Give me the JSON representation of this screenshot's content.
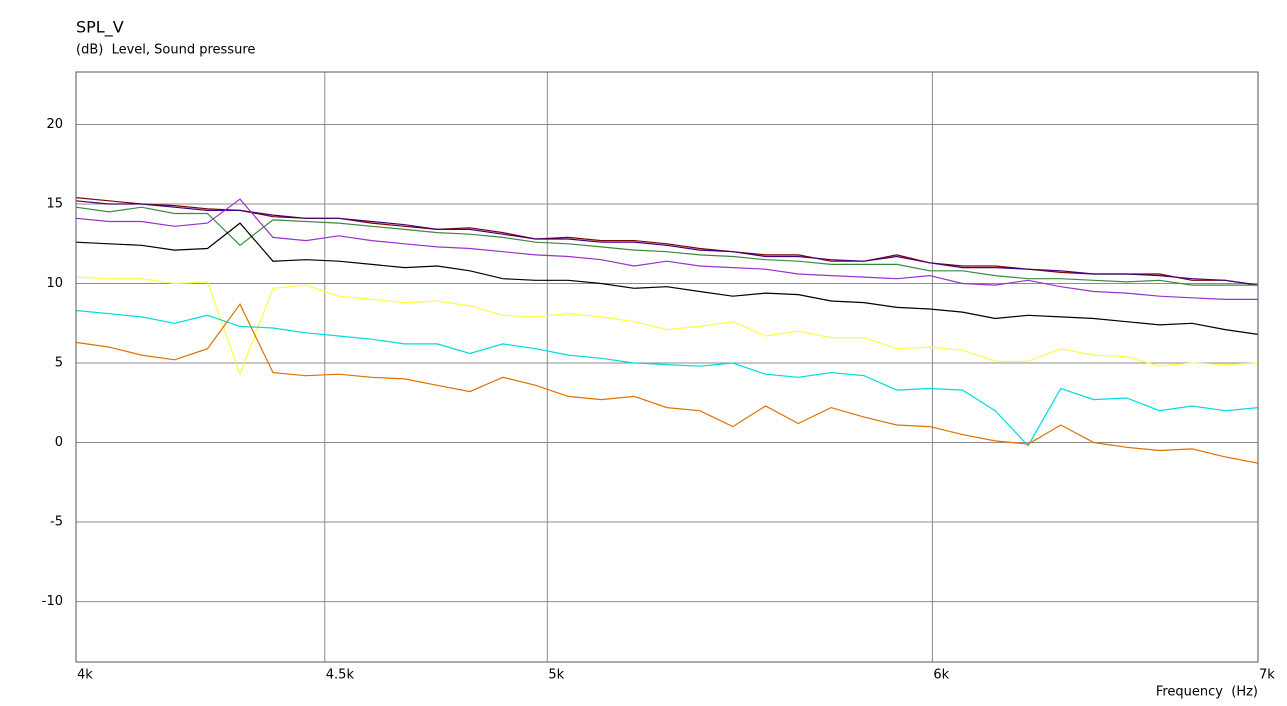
{
  "chart_data": {
    "type": "line",
    "title": "SPL_V",
    "subtitle": "(dB)  Level, Sound pressure",
    "x_label": "Frequency  (Hz)",
    "xscale": "log",
    "grid": true,
    "xlim": [
      4000,
      7000
    ],
    "xticks": [
      {
        "value": 4000,
        "label": "4k"
      },
      {
        "value": 4500,
        "label": "4.5k"
      },
      {
        "value": 5000,
        "label": "5k"
      },
      {
        "value": 6000,
        "label": "6k"
      },
      {
        "value": 7000,
        "label": "7k"
      }
    ],
    "ylim": [
      -13.8,
      23.3
    ],
    "yticks": [
      -10,
      -5,
      0,
      5,
      10,
      15,
      20
    ],
    "x": [
      4000,
      4063,
      4126,
      4191,
      4257,
      4323,
      4391,
      4460,
      4530,
      4601,
      4673,
      4746,
      4820,
      4896,
      4972,
      5050,
      5129,
      5210,
      5291,
      5374,
      5459,
      5544,
      5631,
      5719,
      5809,
      5900,
      5992,
      6086,
      6181,
      6278,
      6376,
      6476,
      6578,
      6681,
      6785,
      6892,
      7000
    ],
    "series": [
      {
        "color": "#800000",
        "values": [
          15.4,
          15.2,
          15.0,
          14.9,
          14.7,
          14.6,
          14.2,
          14.1,
          14.1,
          13.8,
          13.6,
          13.4,
          13.5,
          13.2,
          12.8,
          12.9,
          12.7,
          12.7,
          12.5,
          12.2,
          12.0,
          11.8,
          11.8,
          11.4,
          11.4,
          11.8,
          11.3,
          11.1,
          11.1,
          10.9,
          10.7,
          10.6,
          10.6,
          10.6,
          10.2,
          10.2,
          9.9
        ]
      },
      {
        "color": "#400080",
        "values": [
          15.2,
          15.0,
          15.0,
          14.8,
          14.6,
          14.6,
          14.3,
          14.1,
          14.1,
          13.9,
          13.7,
          13.4,
          13.4,
          13.1,
          12.8,
          12.8,
          12.6,
          12.6,
          12.4,
          12.1,
          12.0,
          11.7,
          11.7,
          11.5,
          11.4,
          11.7,
          11.3,
          11.0,
          11.0,
          10.9,
          10.8,
          10.6,
          10.6,
          10.5,
          10.3,
          10.2,
          9.9
        ]
      },
      {
        "color": "#3c8a3c",
        "values": [
          14.8,
          14.5,
          14.8,
          14.4,
          14.4,
          12.4,
          14.0,
          13.9,
          13.8,
          13.6,
          13.4,
          13.2,
          13.1,
          12.9,
          12.6,
          12.5,
          12.3,
          12.1,
          12.0,
          11.8,
          11.7,
          11.5,
          11.4,
          11.2,
          11.2,
          11.2,
          10.8,
          10.8,
          10.5,
          10.3,
          10.3,
          10.2,
          10.1,
          10.2,
          9.9,
          9.9,
          9.9
        ]
      },
      {
        "color": "#9932cc",
        "values": [
          14.1,
          13.9,
          13.9,
          13.6,
          13.8,
          15.3,
          12.9,
          12.7,
          13.0,
          12.7,
          12.5,
          12.3,
          12.2,
          12.0,
          11.8,
          11.7,
          11.5,
          11.1,
          11.4,
          11.1,
          11.0,
          10.9,
          10.6,
          10.5,
          10.4,
          10.3,
          10.5,
          10.0,
          9.9,
          10.2,
          9.8,
          9.5,
          9.4,
          9.2,
          9.1,
          9.0,
          9.0
        ]
      },
      {
        "color": "#000000",
        "values": [
          12.6,
          12.5,
          12.4,
          12.1,
          12.2,
          13.8,
          11.4,
          11.5,
          11.4,
          11.2,
          11.0,
          11.1,
          10.8,
          10.3,
          10.2,
          10.2,
          10.0,
          9.7,
          9.8,
          9.5,
          9.2,
          9.4,
          9.3,
          8.9,
          8.8,
          8.5,
          8.4,
          8.2,
          7.8,
          8.0,
          7.9,
          7.8,
          7.6,
          7.4,
          7.5,
          7.1,
          6.8
        ]
      },
      {
        "color": "#ffff40",
        "values": [
          10.4,
          10.3,
          10.3,
          10.0,
          10.1,
          4.3,
          9.7,
          9.9,
          9.2,
          9.0,
          8.8,
          8.9,
          8.6,
          8.0,
          7.9,
          8.1,
          7.9,
          7.6,
          7.1,
          7.3,
          7.6,
          6.7,
          7.0,
          6.6,
          6.6,
          5.9,
          6.0,
          5.8,
          5.1,
          5.1,
          5.9,
          5.5,
          5.4,
          4.8,
          5.0,
          4.9,
          5.0
        ]
      },
      {
        "color": "#00dcdc",
        "values": [
          8.3,
          8.1,
          7.9,
          7.5,
          8.0,
          7.3,
          7.2,
          6.9,
          6.7,
          6.5,
          6.2,
          6.2,
          5.6,
          6.2,
          5.9,
          5.5,
          5.3,
          5.0,
          4.9,
          4.8,
          5.0,
          4.3,
          4.1,
          4.4,
          4.2,
          3.3,
          3.4,
          3.3,
          2.0,
          -0.2,
          3.4,
          2.7,
          2.8,
          2.0,
          2.3,
          2.0,
          2.2
        ]
      },
      {
        "color": "#e07000",
        "values": [
          6.3,
          6.0,
          5.5,
          5.2,
          5.9,
          8.7,
          4.4,
          4.2,
          4.3,
          4.1,
          4.0,
          3.6,
          3.2,
          4.1,
          3.6,
          2.9,
          2.7,
          2.9,
          2.2,
          2.0,
          1.0,
          2.3,
          1.2,
          2.2,
          1.6,
          1.1,
          1.0,
          0.5,
          0.1,
          -0.1,
          1.1,
          0.0,
          -0.3,
          -0.5,
          -0.4,
          -0.9,
          -1.3
        ]
      }
    ]
  }
}
